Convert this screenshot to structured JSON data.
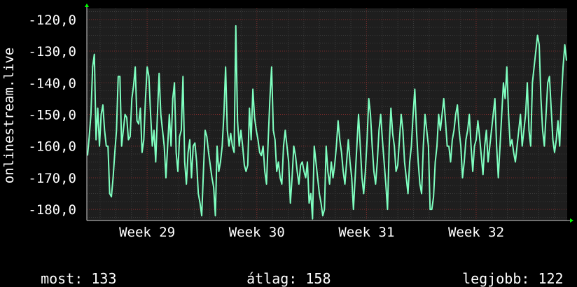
{
  "chart_data": {
    "type": "line",
    "ylabel": "onlinestream.live",
    "xlabel": "",
    "ylim": [
      -183.5,
      -116.5
    ],
    "yticks": [
      -120,
      -130,
      -140,
      -150,
      -160,
      -170,
      -180
    ],
    "ytick_labels": [
      "-120,0",
      "-130,0",
      "-140,0",
      "-150,0",
      "-160,0",
      "-170,0",
      "-180,0"
    ],
    "xlim": [
      28.45,
      32.83
    ],
    "xticks": [
      29,
      30,
      31,
      32
    ],
    "xtick_labels": [
      "Week 29",
      "Week 30",
      "Week 31",
      "Week 32"
    ],
    "grid": true,
    "colors": {
      "background": "#000000",
      "plot_background": "#1e1e1e",
      "line": "#7fffc0",
      "grid_major": "#7a2a2a",
      "grid_minor": "#3a3a3a",
      "arrow": "#00ff00"
    },
    "series": [
      {
        "values": [
          -163,
          -157,
          -150,
          -135,
          -131,
          -158,
          -148,
          -160,
          -150,
          -147,
          -155,
          -160,
          -160,
          -175,
          -176,
          -170,
          -162,
          -155,
          -138,
          -138,
          -160,
          -155,
          -150,
          -151,
          -158,
          -157,
          -145,
          -141,
          -135,
          -152,
          -153,
          -148,
          -162,
          -158,
          -145,
          -135,
          -138,
          -150,
          -160,
          -155,
          -165,
          -150,
          -137,
          -150,
          -155,
          -160,
          -170,
          -160,
          -150,
          -160,
          -145,
          -140,
          -162,
          -168,
          -157,
          -155,
          -138,
          -165,
          -172,
          -162,
          -158,
          -170,
          -160,
          -159,
          -165,
          -175,
          -178,
          -182,
          -168,
          -155,
          -157,
          -162,
          -166,
          -170,
          -173,
          -182,
          -160,
          -168,
          -165,
          -160,
          -150,
          -135,
          -155,
          -160,
          -156,
          -160,
          -162,
          -122,
          -152,
          -160,
          -155,
          -160,
          -166,
          -168,
          -166,
          -148,
          -158,
          -142,
          -151,
          -155,
          -158,
          -162,
          -163,
          -160,
          -168,
          -172,
          -158,
          -145,
          -135,
          -155,
          -158,
          -168,
          -165,
          -170,
          -172,
          -160,
          -155,
          -160,
          -165,
          -178,
          -170,
          -160,
          -163,
          -168,
          -172,
          -166,
          -165,
          -168,
          -170,
          -165,
          -178,
          -175,
          -183,
          -160,
          -165,
          -170,
          -175,
          -178,
          -182,
          -180,
          -160,
          -168,
          -172,
          -165,
          -170,
          -166,
          -160,
          -152,
          -158,
          -162,
          -168,
          -172,
          -165,
          -158,
          -165,
          -170,
          -180,
          -170,
          -160,
          -150,
          -160,
          -170,
          -175,
          -168,
          -158,
          -145,
          -150,
          -160,
          -168,
          -172,
          -165,
          -155,
          -150,
          -158,
          -165,
          -172,
          -180,
          -160,
          -148,
          -156,
          -160,
          -168,
          -166,
          -158,
          -150,
          -155,
          -165,
          -170,
          -175,
          -165,
          -160,
          -150,
          -142,
          -155,
          -165,
          -172,
          -175,
          -160,
          -150,
          -155,
          -160,
          -180,
          -180,
          -176,
          -165,
          -160,
          -150,
          -155,
          -150,
          -145,
          -152,
          -160,
          -160,
          -165,
          -158,
          -155,
          -150,
          -147,
          -155,
          -160,
          -170,
          -165,
          -158,
          -155,
          -150,
          -160,
          -168,
          -160,
          -158,
          -152,
          -157,
          -163,
          -169,
          -160,
          -155,
          -165,
          -160,
          -155,
          -150,
          -145,
          -160,
          -170,
          -160,
          -150,
          -140,
          -145,
          -135,
          -150,
          -160,
          -158,
          -162,
          -165,
          -160,
          -155,
          -150,
          -160,
          -155,
          -150,
          -140,
          -155,
          -160,
          -140,
          -135,
          -130,
          -125,
          -128,
          -145,
          -155,
          -160,
          -150,
          -140,
          -138,
          -148,
          -158,
          -162,
          -158,
          -152,
          -160,
          -145,
          -135,
          -128,
          -133
        ]
      }
    ]
  },
  "footer": {
    "current_label": "most:",
    "current_value": "133",
    "average_label": "átlag:",
    "average_value": "158",
    "best_label": "legjobb:",
    "best_value": "122"
  }
}
